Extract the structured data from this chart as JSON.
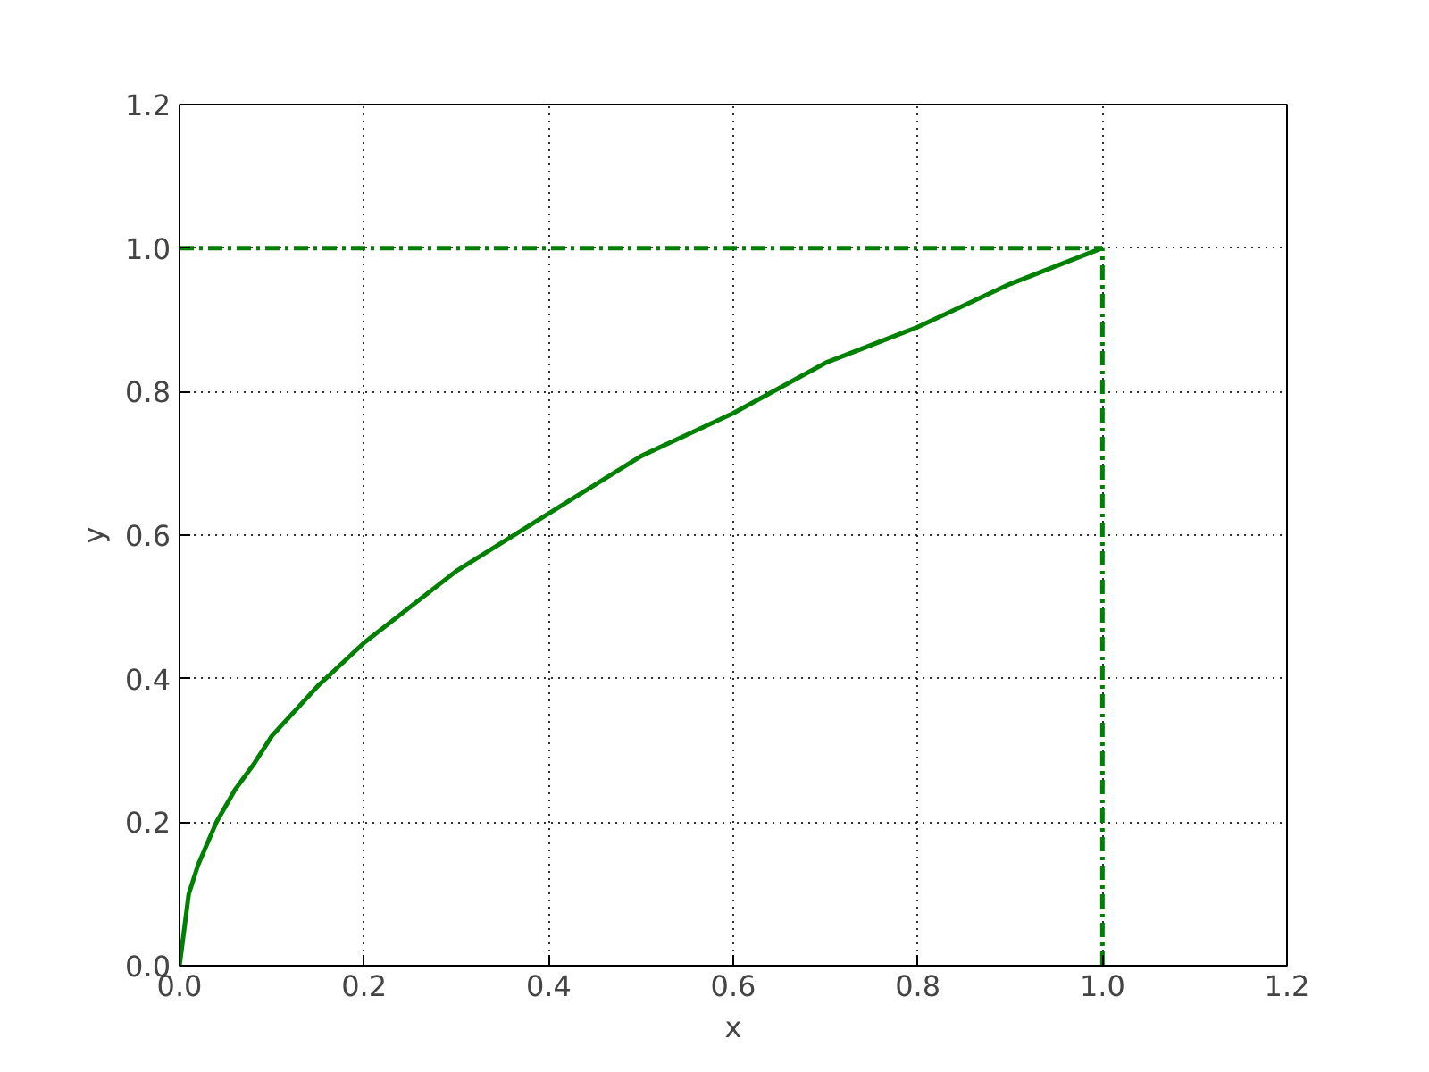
{
  "chart_data": {
    "type": "line",
    "xlabel": "x",
    "ylabel": "y",
    "xlim": [
      0,
      1.2
    ],
    "ylim": [
      0,
      1.2
    ],
    "xticks": [
      {
        "value": 0,
        "label": "0.0"
      },
      0.2,
      0.4,
      0.6,
      0.8,
      {
        "value": 1,
        "label": "1.0"
      },
      1.2
    ],
    "yticks": [
      {
        "value": 0,
        "label": "0.0"
      },
      0.2,
      0.4,
      0.6,
      0.8,
      {
        "value": 1,
        "label": "1.0"
      },
      1.2
    ],
    "grid": true,
    "marker": "none",
    "series": [
      {
        "color": "#008000",
        "line_style": "solid",
        "x": [
          0,
          0.01,
          0.02,
          0.04,
          0.06,
          0.08,
          0.1,
          0.15,
          0.2,
          0.3,
          0.4,
          0.5,
          0.6,
          0.7,
          0.8,
          0.9,
          1.0
        ],
        "values": [
          0,
          0.1,
          0.14,
          0.2,
          0.245,
          0.28,
          0.32,
          0.39,
          0.45,
          0.55,
          0.63,
          0.71,
          0.77,
          0.84,
          0.89,
          0.95,
          1.0
        ]
      },
      {
        "color": "#008000",
        "line_style": "dashed",
        "x": [
          0,
          1
        ],
        "values": [
          1,
          1
        ]
      },
      {
        "color": "#008000",
        "line_style": "dashed",
        "x": [
          1,
          1
        ],
        "values": [
          0,
          1
        ]
      }
    ]
  }
}
